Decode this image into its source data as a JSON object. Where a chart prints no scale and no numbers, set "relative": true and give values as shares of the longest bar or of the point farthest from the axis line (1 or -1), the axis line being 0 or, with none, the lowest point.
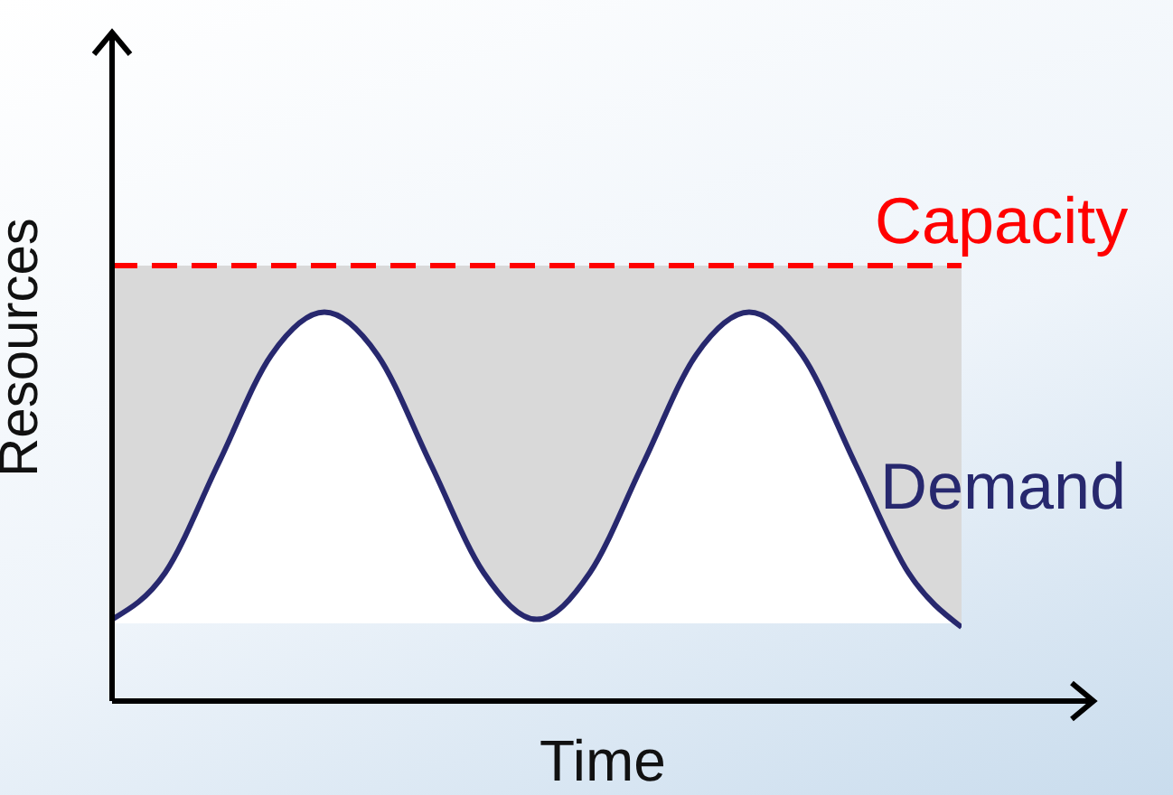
{
  "chart_data": {
    "type": "area",
    "relative": true,
    "xlabel": "Time",
    "ylabel": "Resources",
    "categories": [
      null,
      null,
      null,
      null,
      null,
      null,
      null,
      null,
      null,
      null,
      null,
      null,
      null,
      null,
      null,
      null,
      null
    ],
    "series": [
      {
        "name": "Demand",
        "color": "#27286e",
        "values": [
          0.21,
          0.33,
          0.61,
          0.89,
          1,
          0.89,
          0.61,
          0.33,
          0.21,
          0.33,
          0.61,
          0.89,
          1,
          0.89,
          0.61,
          0.33,
          0.19
        ]
      }
    ],
    "ref_lines": [
      {
        "axis": "y",
        "value": 1.12,
        "label": "Capacity",
        "color": "#ff0000",
        "line_style": "dashed"
      }
    ],
    "bands": [
      {
        "axis": "y",
        "from": 0.2,
        "to": 1.12,
        "color": "#d9d9d9"
      }
    ],
    "marker": "none"
  }
}
